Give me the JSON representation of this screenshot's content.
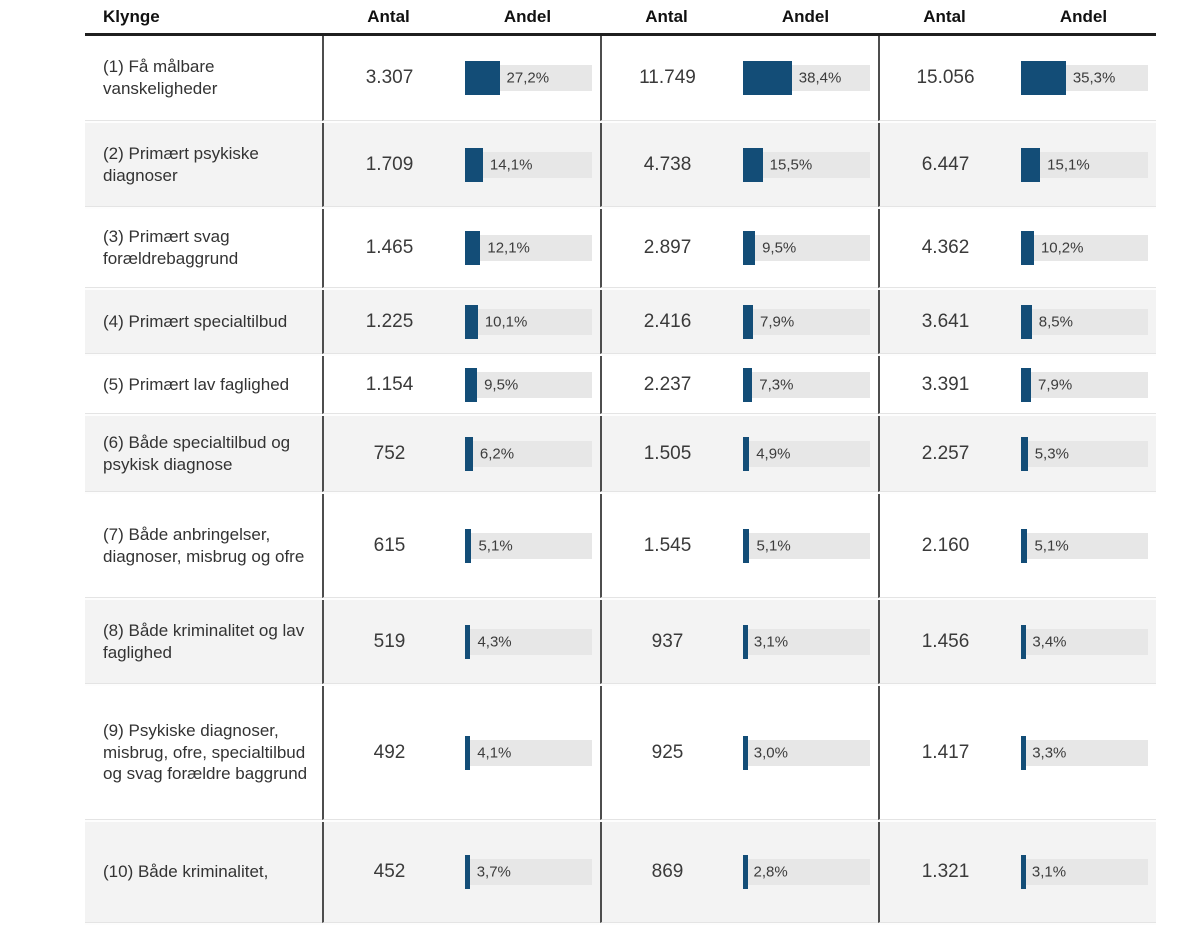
{
  "header": {
    "klynge": "Klynge",
    "groups": [
      {
        "antal": "Antal",
        "andel": "Andel"
      },
      {
        "antal": "Antal",
        "andel": "Andel"
      },
      {
        "antal": "Antal",
        "andel": "Andel"
      }
    ]
  },
  "colors": {
    "bar": "#134d77",
    "bar_track": "#e7e7e7",
    "row_alternate": "#f3f3f3",
    "header_rule": "#1f1f1f",
    "column_divider": "#4d4d4d"
  },
  "rows": [
    {
      "label": "(1) Få målbare vanskeligheder",
      "cells": [
        {
          "antal": "3.307",
          "andel": "27,2%",
          "pct": 27.2
        },
        {
          "antal": "11.749",
          "andel": "38,4%",
          "pct": 38.4
        },
        {
          "antal": "15.056",
          "andel": "35,3%",
          "pct": 35.3
        }
      ]
    },
    {
      "label": "(2) Primært psykiske diagnoser",
      "cells": [
        {
          "antal": "1.709",
          "andel": "14,1%",
          "pct": 14.1
        },
        {
          "antal": "4.738",
          "andel": "15,5%",
          "pct": 15.5
        },
        {
          "antal": "6.447",
          "andel": "15,1%",
          "pct": 15.1
        }
      ]
    },
    {
      "label": "(3) Primært svag forældrebaggrund",
      "cells": [
        {
          "antal": "1.465",
          "andel": "12,1%",
          "pct": 12.1
        },
        {
          "antal": "2.897",
          "andel": "9,5%",
          "pct": 9.5
        },
        {
          "antal": "4.362",
          "andel": "10,2%",
          "pct": 10.2
        }
      ]
    },
    {
      "label": "(4) Primært specialtilbud",
      "cells": [
        {
          "antal": "1.225",
          "andel": "10,1%",
          "pct": 10.1
        },
        {
          "antal": "2.416",
          "andel": "7,9%",
          "pct": 7.9
        },
        {
          "antal": "3.641",
          "andel": "8,5%",
          "pct": 8.5
        }
      ]
    },
    {
      "label": "(5) Primært lav faglighed",
      "cells": [
        {
          "antal": "1.154",
          "andel": "9,5%",
          "pct": 9.5
        },
        {
          "antal": "2.237",
          "andel": "7,3%",
          "pct": 7.3
        },
        {
          "antal": "3.391",
          "andel": "7,9%",
          "pct": 7.9
        }
      ]
    },
    {
      "label": "(6) Både specialtilbud og psykisk diagnose",
      "cells": [
        {
          "antal": "752",
          "andel": "6,2%",
          "pct": 6.2
        },
        {
          "antal": "1.505",
          "andel": "4,9%",
          "pct": 4.9
        },
        {
          "antal": "2.257",
          "andel": "5,3%",
          "pct": 5.3
        }
      ]
    },
    {
      "label": "(7) Både anbringelser, diagnoser, misbrug og ofre",
      "cells": [
        {
          "antal": "615",
          "andel": "5,1%",
          "pct": 5.1
        },
        {
          "antal": "1.545",
          "andel": "5,1%",
          "pct": 5.1
        },
        {
          "antal": "2.160",
          "andel": "5,1%",
          "pct": 5.1
        }
      ]
    },
    {
      "label": "(8) Både kriminalitet og lav faglighed",
      "cells": [
        {
          "antal": "519",
          "andel": "4,3%",
          "pct": 4.3
        },
        {
          "antal": "937",
          "andel": "3,1%",
          "pct": 3.1
        },
        {
          "antal": "1.456",
          "andel": "3,4%",
          "pct": 3.4
        }
      ]
    },
    {
      "label": "(9) Psykiske diagnoser, misbrug, ofre, specialtilbud og svag forældre baggrund",
      "cells": [
        {
          "antal": "492",
          "andel": "4,1%",
          "pct": 4.1
        },
        {
          "antal": "925",
          "andel": "3,0%",
          "pct": 3.0
        },
        {
          "antal": "1.417",
          "andel": "3,3%",
          "pct": 3.3
        }
      ]
    },
    {
      "label": "(10) Både kriminalitet,",
      "cells": [
        {
          "antal": "452",
          "andel": "3,7%",
          "pct": 3.7
        },
        {
          "antal": "869",
          "andel": "2,8%",
          "pct": 2.8
        },
        {
          "antal": "1.321",
          "andel": "3,1%",
          "pct": 3.1
        }
      ]
    }
  ],
  "chart_data": {
    "type": "table",
    "title": "",
    "row_header": "Klynge",
    "columns": [
      "Antal",
      "Andel",
      "Antal",
      "Andel",
      "Antal",
      "Andel"
    ],
    "categories": [
      "(1) Få målbare vanskeligheder",
      "(2) Primært psykiske diagnoser",
      "(3) Primært svag forældrebaggrund",
      "(4) Primært specialtilbud",
      "(5) Primært lav faglighed",
      "(6) Både specialtilbud og psykisk diagnose",
      "(7) Både anbringelser, diagnoser, misbrug og ofre",
      "(8) Både kriminalitet og lav faglighed",
      "(9) Psykiske diagnoser, misbrug, ofre, specialtilbud og svag forældre baggrund",
      "(10) Både kriminalitet,"
    ],
    "series": [
      {
        "name": "Antal (gruppe 1)",
        "values": [
          3307,
          1709,
          1465,
          1225,
          1154,
          752,
          615,
          519,
          492,
          452
        ]
      },
      {
        "name": "Andel % (gruppe 1)",
        "values": [
          27.2,
          14.1,
          12.1,
          10.1,
          9.5,
          6.2,
          5.1,
          4.3,
          4.1,
          3.7
        ]
      },
      {
        "name": "Antal (gruppe 2)",
        "values": [
          11749,
          4738,
          2897,
          2416,
          2237,
          1505,
          1545,
          937,
          925,
          869
        ]
      },
      {
        "name": "Andel % (gruppe 2)",
        "values": [
          38.4,
          15.5,
          9.5,
          7.9,
          7.3,
          4.9,
          5.1,
          3.1,
          3.0,
          2.8
        ]
      },
      {
        "name": "Antal (gruppe 3)",
        "values": [
          15056,
          6447,
          4362,
          3641,
          3391,
          2257,
          2160,
          1456,
          1417,
          1321
        ]
      },
      {
        "name": "Andel % (gruppe 3)",
        "values": [
          35.3,
          15.1,
          10.2,
          8.5,
          7.9,
          5.3,
          5.1,
          3.4,
          3.3,
          3.1
        ]
      }
    ],
    "layout": {
      "bars": "horizontal, track = 100%",
      "legend": "none",
      "grid": "off"
    }
  }
}
